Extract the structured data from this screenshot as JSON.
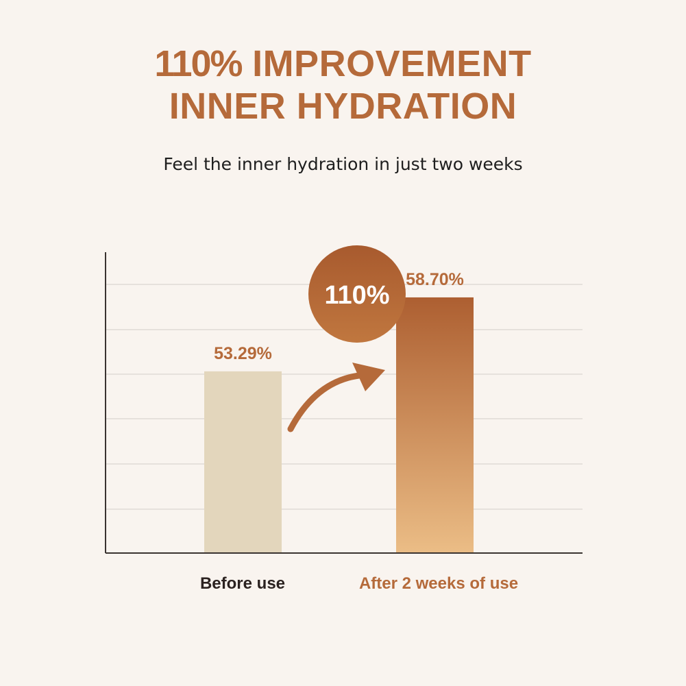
{
  "header": {
    "title_highlight": "110%",
    "title_rest": "IMPROVEMENT",
    "title_line2": "INNER HYDRATION",
    "subtitle": "Feel the inner hydration in just two weeks"
  },
  "colors": {
    "background": "#f9f4ef",
    "accent": "#b56a3a",
    "before_bar": "#e3d6bc",
    "after_bar_top": "#ad5f31",
    "after_bar_bottom": "#ebbd86",
    "grid": "#e6e1dc",
    "axis": "#3a3330"
  },
  "chart_data": {
    "type": "bar",
    "categories": [
      "Before use",
      "After 2 weeks of use"
    ],
    "values": [
      53.29,
      58.7
    ],
    "value_labels": [
      "53.29%",
      "58.70%"
    ],
    "improvement_badge": "110%",
    "grid": true,
    "ylim": [
      40,
      60
    ]
  }
}
